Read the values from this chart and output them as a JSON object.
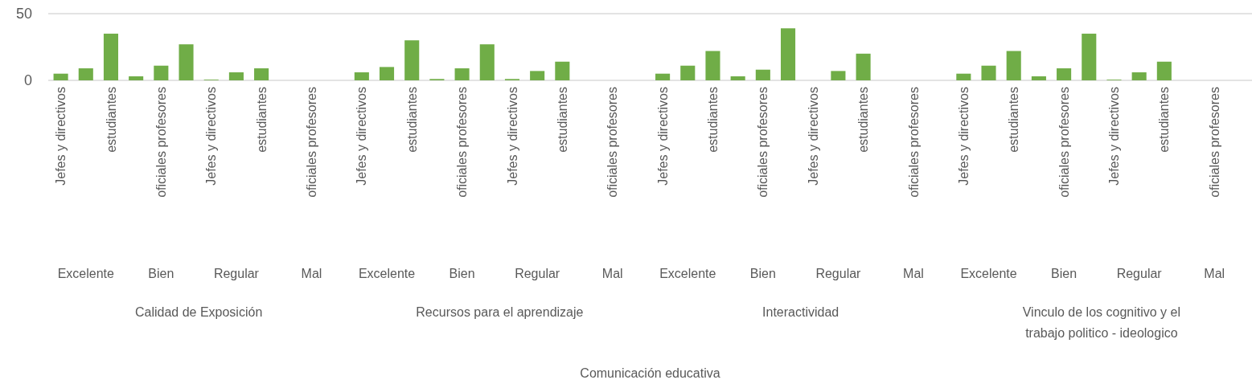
{
  "chart_data": {
    "type": "bar",
    "categories": [
      "Jefes y directivos",
      null,
      "estudiantes",
      null,
      "oficiales profesores",
      null,
      "Jefes y directivos",
      null,
      "estudiantes",
      null,
      "oficiales profesores",
      null,
      "Jefes y directivos",
      null,
      "estudiantes",
      null,
      "oficiales profesores",
      null,
      "Jefes y directivos",
      null,
      "estudiantes",
      null,
      "oficiales profesores",
      null,
      "Jefes y directivos",
      null,
      "estudiantes",
      null,
      "oficiales profesores",
      null,
      "Jefes y directivos",
      null,
      "estudiantes",
      null,
      "oficiales profesores",
      null,
      "Jefes y directivos",
      null,
      "estudiantes",
      null,
      "oficiales profesores",
      null,
      "Jefes y directivos",
      null,
      "estudiantes",
      null,
      "oficiales profesores",
      null
    ],
    "values": [
      5,
      9,
      35,
      3,
      11,
      27,
      0.5,
      6,
      9,
      0,
      0,
      0,
      6,
      10,
      30,
      1,
      9,
      27,
      1,
      7,
      14,
      0,
      0,
      0,
      5,
      11,
      22,
      3,
      8,
      39,
      0,
      7,
      20,
      0,
      0,
      0,
      5,
      11,
      22,
      3,
      9,
      35,
      0.5,
      6,
      14,
      0,
      0,
      0
    ],
    "color": "#70ad47",
    "ylim": [
      0,
      50
    ],
    "yticks": [
      0,
      50
    ],
    "annotations": [
      "Excelente",
      "Bien",
      "Regular",
      "Mal",
      "Excelente",
      "Bien",
      "Regular",
      "Mal",
      "Excelente",
      "Bien",
      "Regular",
      "Mal",
      "Excelente",
      "Bien",
      "Regular",
      "Mal",
      "Calidad de Exposición",
      "Recursos para el aprendizaje",
      "Interactividad",
      "Vinculo de los cognitivo y el trabajo politico - ideologico",
      "Comunicación educativa"
    ]
  }
}
